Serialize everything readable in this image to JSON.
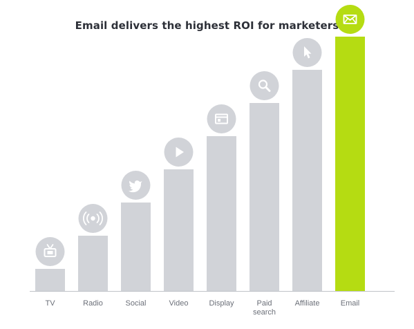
{
  "chart_data": {
    "type": "bar",
    "title": "Email delivers the highest ROI for marketers",
    "xlabel": "",
    "ylabel": "",
    "categories": [
      "TV",
      "Radio",
      "Social",
      "Video",
      "Display",
      "Paid search",
      "Affiliate",
      "Email"
    ],
    "category_lines": [
      [
        "TV"
      ],
      [
        "Radio"
      ],
      [
        "Social"
      ],
      [
        "Video"
      ],
      [
        "Display"
      ],
      [
        "Paid",
        "search"
      ],
      [
        "Affiliate"
      ],
      [
        "Email"
      ]
    ],
    "values": [
      1,
      2.5,
      4,
      5.5,
      7,
      8.5,
      10,
      11.5
    ],
    "ylim": [
      0,
      12
    ],
    "icons": [
      "tv-icon",
      "radio-broadcast-icon",
      "twitter-bird-icon",
      "play-icon",
      "display-window-icon",
      "search-icon",
      "cursor-pointer-icon",
      "envelope-icon"
    ],
    "colors": {
      "bar": "#d1d3d8",
      "highlight_bar": "#b5dc12",
      "icon_circle": "#d1d3d8",
      "icon_glyph": "#ffffff",
      "axis": "#bfc2c8"
    },
    "highlight_index": 7,
    "grid": false,
    "legend": "none"
  }
}
